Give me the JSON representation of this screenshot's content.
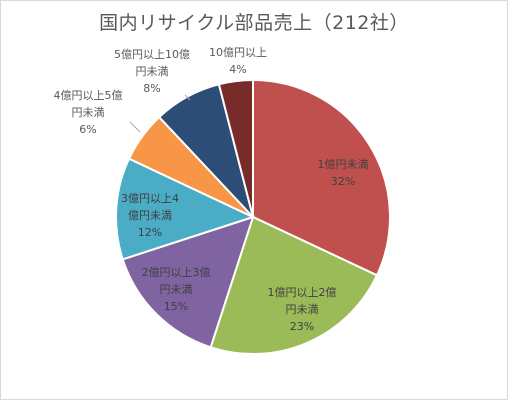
{
  "chart_data": {
    "type": "pie",
    "title": "国内リサイクル部品売上（212社）",
    "slices": [
      {
        "label_lines": [
          "1億円未満"
        ],
        "pct_label": "32%",
        "value": 32,
        "color": "#c0504d"
      },
      {
        "label_lines": [
          "1億円以上2億",
          "円未満"
        ],
        "pct_label": "23%",
        "value": 23,
        "color": "#9bbb59"
      },
      {
        "label_lines": [
          "2億円以上3億",
          "円未満"
        ],
        "pct_label": "15%",
        "value": 15,
        "color": "#8064a2"
      },
      {
        "label_lines": [
          "3億円以上4",
          "億円未満"
        ],
        "pct_label": "12%",
        "value": 12,
        "color": "#4bacc6"
      },
      {
        "label_lines": [
          "4億円以上5億",
          "円未満"
        ],
        "pct_label": "6%",
        "value": 6,
        "color": "#f79646"
      },
      {
        "label_lines": [
          "5億円以上10億",
          "円未満"
        ],
        "pct_label": "8%",
        "value": 8,
        "color": "#2c4d75"
      },
      {
        "label_lines": [
          "10億円以上"
        ],
        "pct_label": "4%",
        "value": 4,
        "color": "#772c2a"
      }
    ],
    "legend": false
  }
}
